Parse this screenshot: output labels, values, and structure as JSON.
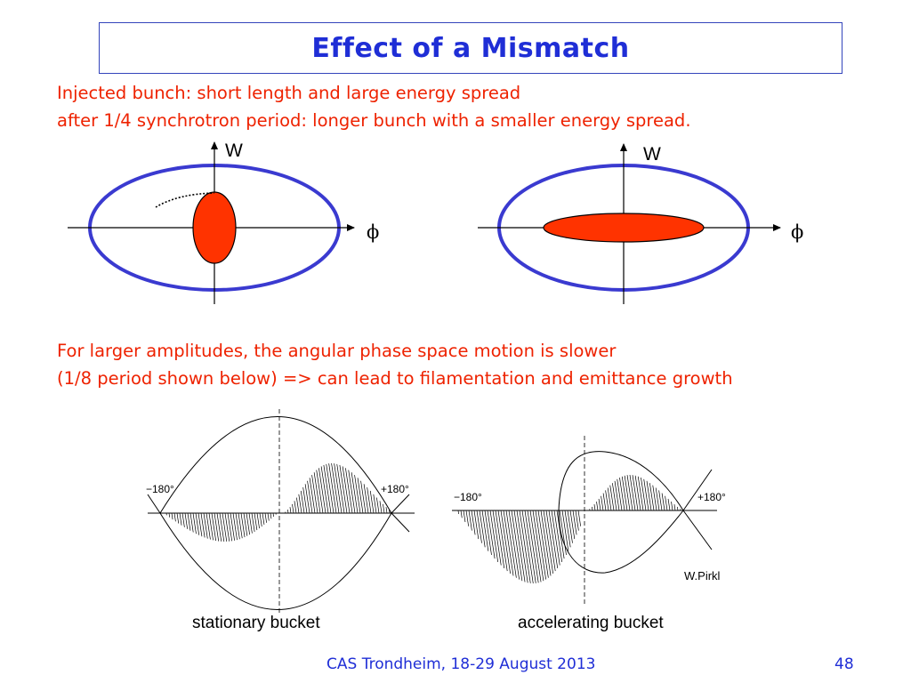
{
  "slide": {
    "title": "Effect of a Mismatch",
    "intro_line1": "Injected bunch: short length and large energy spread",
    "intro_line2": "after 1/4 synchrotron period:  longer bunch with a smaller energy spread.",
    "body_line1": "For larger amplitudes, the angular phase space motion is slower",
    "body_line2": "(1/8 period shown below)    => can lead to filamentation and emittance growth"
  },
  "diagram_left": {
    "y_axis_label": "W",
    "x_axis_label": "ϕ"
  },
  "diagram_right": {
    "y_axis_label": "W",
    "x_axis_label": "ϕ"
  },
  "colors": {
    "bucket": "#3a3ad0",
    "bunch": "#ff3300",
    "title": "#1f2ed6",
    "text_red": "#ee2200"
  },
  "figures": {
    "stationary": {
      "left_tick": "−180°",
      "right_tick": "+180°",
      "caption": "stationary bucket"
    },
    "accelerating": {
      "left_tick": "−180°",
      "right_tick": "+180°",
      "caption": "accelerating bucket"
    },
    "credit": "W.Pirkl"
  },
  "footer": {
    "conference": "CAS Trondheim, 18-29 August 2013",
    "page": "48"
  }
}
